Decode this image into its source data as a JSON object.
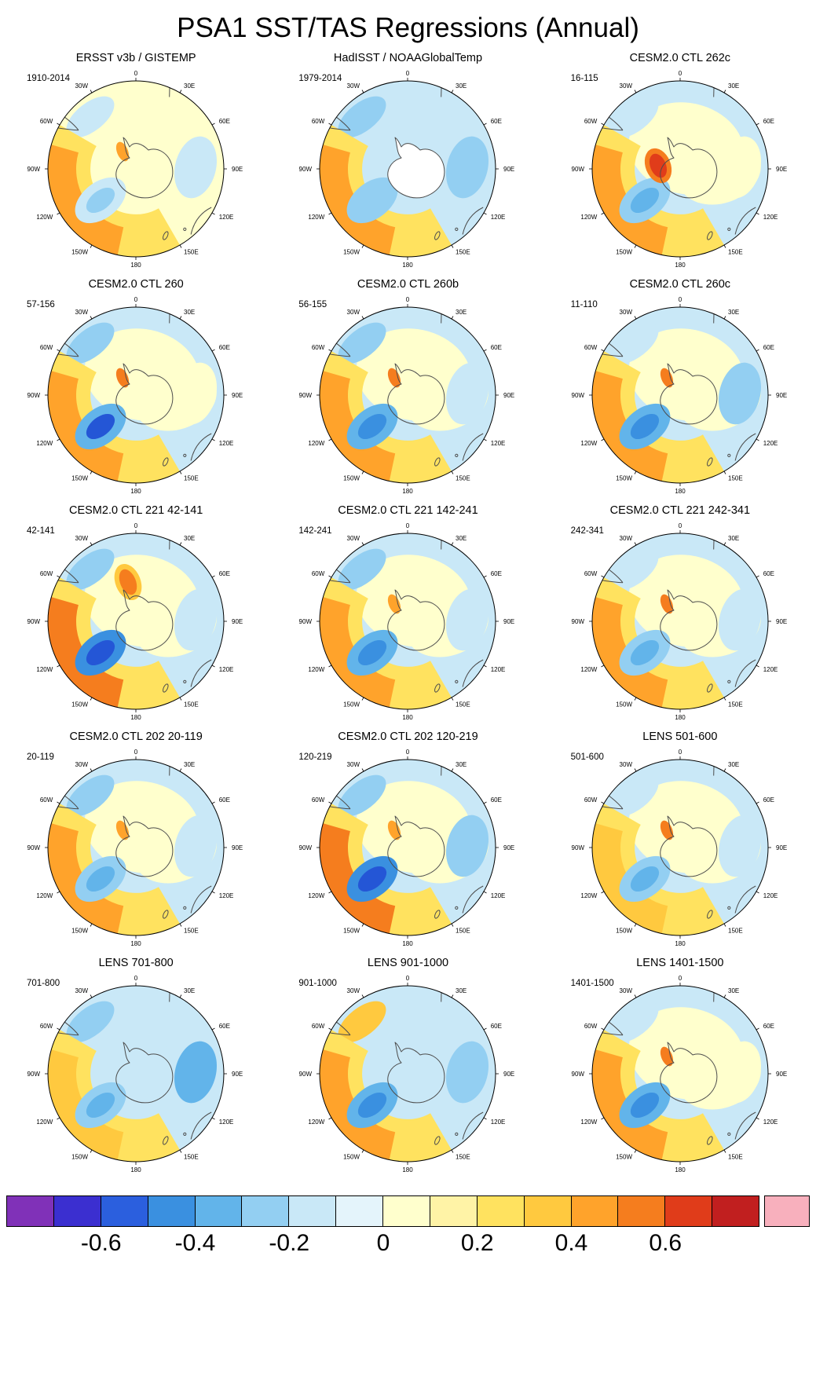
{
  "chart_data": {
    "type": "heatmap",
    "subtype": "south-polar-stereographic filled-contour map grid",
    "title": "PSA1 SST/TAS Regressions (Annual)",
    "grid": {
      "rows": 5,
      "cols": 3
    },
    "longitude_labels": [
      "0",
      "30E",
      "60E",
      "90E",
      "120E",
      "150E",
      "180",
      "150W",
      "120W",
      "90W",
      "60W",
      "30W"
    ],
    "panels": [
      {
        "title": "ERSST v3b / GISTEMP",
        "corner_label": "1910-2014",
        "continent": "outline",
        "pattern": {
          "bg": "#ffffcd",
          "center": "#ffffcd",
          "band": "#ffe25f",
          "band_core": "#ffa32b",
          "low": "#c9e8f7",
          "low_core": "#93cff2",
          "top_patch": "#c9e8f7",
          "right_patch": "#c9e8f7",
          "spot": "#ffa32b",
          "spot_ring": null
        }
      },
      {
        "title": "HadISST / NOAAGlobalTemp",
        "corner_label": "1979-2014",
        "continent": "white",
        "pattern": {
          "bg": "#c9e8f7",
          "center": "#c9e8f7",
          "band": "#ffe25f",
          "band_core": "#ffa32b",
          "low": "#93cff2",
          "low_core": null,
          "top_patch": "#93cff2",
          "right_patch": "#93cff2",
          "spot": null,
          "spot_ring": null
        }
      },
      {
        "title": "CESM2.0 CTL 262c",
        "corner_label": "16-115",
        "continent": "outline",
        "pattern": {
          "bg": "#c9e8f7",
          "center": "#ffffcd",
          "band": "#ffe25f",
          "band_core": "#ffa32b",
          "low": "#93cff2",
          "low_core": "#62b4ea",
          "top_patch": "#c9e8f7",
          "right_patch": "#ffffcd",
          "spot": "#e03c1a",
          "spot_ring": "#f57d1e",
          "spot_pos": [
            -28,
            -4
          ],
          "spot_size": [
            10,
            16
          ]
        }
      },
      {
        "title": "CESM2.0 CTL 260",
        "corner_label": "57-156",
        "continent": "outline",
        "pattern": {
          "bg": "#c9e8f7",
          "center": "#ffffcd",
          "band": "#ffe25f",
          "band_core": "#ffa32b",
          "low": "#62b4ea",
          "low_core": "#2456d6",
          "top_patch": "#93cff2",
          "right_patch": "#ffffcd",
          "spot": "#f57d1e",
          "spot_ring": null
        }
      },
      {
        "title": "CESM2.0 CTL 260b",
        "corner_label": "56-155",
        "continent": "outline",
        "pattern": {
          "bg": "#c9e8f7",
          "center": "#ffffcd",
          "band": "#ffe25f",
          "band_core": "#ffa32b",
          "low": "#62b4ea",
          "low_core": "#3a90e0",
          "top_patch": "#93cff2",
          "right_patch": "#c9e8f7",
          "spot": "#f57d1e",
          "spot_ring": null
        }
      },
      {
        "title": "CESM2.0 CTL 260c",
        "corner_label": "11-110",
        "continent": "outline",
        "pattern": {
          "bg": "#c9e8f7",
          "center": "#ffffcd",
          "band": "#ffe25f",
          "band_core": "#ffa32b",
          "low": "#62b4ea",
          "low_core": "#3a90e0",
          "top_patch": "#c9e8f7",
          "right_patch": "#93cff2",
          "spot": "#f57d1e",
          "spot_ring": null
        }
      },
      {
        "title": "CESM2.0 CTL 221 42-141",
        "corner_label": "42-141",
        "continent": "outline",
        "pattern": {
          "bg": "#c9e8f7",
          "center": "#ffffcd",
          "band": "#ffe25f",
          "band_core": "#f57d1e",
          "low": "#3a90e0",
          "low_core": "#2456d6",
          "top_patch": "#93cff2",
          "right_patch": "#c9e8f7",
          "spot": "#f57d1e",
          "spot_ring": "#ffc93f",
          "spot_pos": [
            -10,
            -50
          ],
          "spot_size": [
            10,
            17
          ]
        }
      },
      {
        "title": "CESM2.0 CTL 221 142-241",
        "corner_label": "142-241",
        "continent": "outline",
        "pattern": {
          "bg": "#c9e8f7",
          "center": "#ffffcd",
          "band": "#ffe25f",
          "band_core": "#ffa32b",
          "low": "#62b4ea",
          "low_core": "#3a90e0",
          "top_patch": "#93cff2",
          "right_patch": "#c9e8f7",
          "spot": "#ffa32b",
          "spot_ring": null
        }
      },
      {
        "title": "CESM2.0 CTL 221 242-341",
        "corner_label": "242-341",
        "continent": "outline",
        "pattern": {
          "bg": "#c9e8f7",
          "center": "#ffffcd",
          "band": "#ffe25f",
          "band_core": "#ffa32b",
          "low": "#93cff2",
          "low_core": "#62b4ea",
          "top_patch": "#c9e8f7",
          "right_patch": "#c9e8f7",
          "spot": "#f57d1e",
          "spot_ring": null
        }
      },
      {
        "title": "CESM2.0 CTL 202 20-119",
        "corner_label": "20-119",
        "continent": "outline",
        "pattern": {
          "bg": "#c9e8f7",
          "center": "#ffffcd",
          "band": "#ffe25f",
          "band_core": "#ffa32b",
          "low": "#93cff2",
          "low_core": "#62b4ea",
          "top_patch": "#93cff2",
          "right_patch": "#c9e8f7",
          "spot": "#ffa32b",
          "spot_ring": null
        }
      },
      {
        "title": "CESM2.0 CTL 202 120-219",
        "corner_label": "120-219",
        "continent": "outline",
        "pattern": {
          "bg": "#c9e8f7",
          "center": "#ffffcd",
          "band": "#ffe25f",
          "band_core": "#f57d1e",
          "low": "#3a90e0",
          "low_core": "#2456d6",
          "top_patch": "#93cff2",
          "right_patch": "#93cff2",
          "spot": "#ffa32b",
          "spot_ring": null
        }
      },
      {
        "title": "LENS 501-600",
        "corner_label": "501-600",
        "continent": "outline",
        "pattern": {
          "bg": "#c9e8f7",
          "center": "#ffffcd",
          "band": "#ffe25f",
          "band_core": "#ffc93f",
          "low": "#93cff2",
          "low_core": "#62b4ea",
          "top_patch": "#c9e8f7",
          "right_patch": "#c9e8f7",
          "spot": "#f57d1e",
          "spot_ring": null
        }
      },
      {
        "title": "LENS 701-800",
        "corner_label": "701-800",
        "continent": "outline",
        "pattern": {
          "bg": "#c9e8f7",
          "center": "#c9e8f7",
          "band": "#ffe25f",
          "band_core": "#ffc93f",
          "low": "#93cff2",
          "low_core": "#62b4ea",
          "top_patch": "#93cff2",
          "right_patch": "#62b4ea",
          "spot": null,
          "spot_ring": null
        }
      },
      {
        "title": "LENS 901-1000",
        "corner_label": "901-1000",
        "continent": "outline",
        "pattern": {
          "bg": "#c9e8f7",
          "center": "#c9e8f7",
          "band": "#ffe25f",
          "band_core": "#ffa32b",
          "low": "#62b4ea",
          "low_core": "#3a90e0",
          "top_patch": "#ffc93f",
          "right_patch": "#93cff2",
          "spot": null,
          "spot_ring": null
        }
      },
      {
        "title": "LENS 1401-1500",
        "corner_label": "1401-1500",
        "continent": "outline",
        "pattern": {
          "bg": "#c9e8f7",
          "center": "#ffffcd",
          "band": "#ffe25f",
          "band_core": "#ffa32b",
          "low": "#62b4ea",
          "low_core": "#3a90e0",
          "top_patch": "#c9e8f7",
          "right_patch": "#ffffcd",
          "spot": "#f57d1e",
          "spot_ring": null
        }
      }
    ],
    "colorbar": {
      "orientation": "horizontal",
      "tick_labels": [
        "-0.6",
        "-0.4",
        "-0.2",
        "0",
        "0.2",
        "0.4",
        "0.6"
      ],
      "tick_values": [
        -0.6,
        -0.4,
        -0.2,
        0,
        0.2,
        0.4,
        0.6
      ],
      "segment_colors": [
        "#8031b8",
        "#3b2fd0",
        "#2b5fde",
        "#3a90e0",
        "#62b4ea",
        "#93cff2",
        "#c9e8f7",
        "#e4f4fb",
        "#ffffcd",
        "#fff3a6",
        "#ffe25f",
        "#ffc93f",
        "#ffa32b",
        "#f57d1e",
        "#e03c1a",
        "#c11f1f"
      ],
      "over_color": "#f8b0bd"
    }
  }
}
